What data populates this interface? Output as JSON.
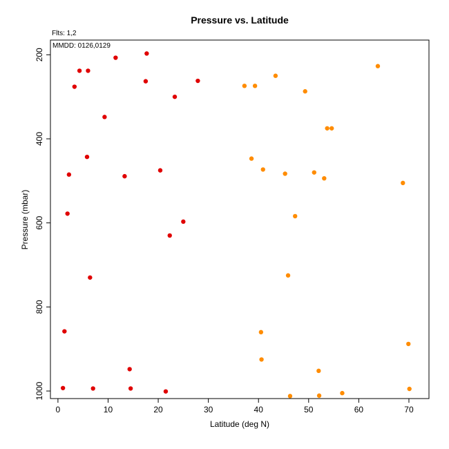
{
  "chart_data": {
    "type": "scatter",
    "title": "Pressure vs. Latitude",
    "xlabel": "Latitude (deg N)",
    "ylabel": "Pressure (mbar)",
    "xlim": [
      -1.5,
      74
    ],
    "ylim": [
      1018,
      165
    ],
    "y_reversed": true,
    "x_ticks": [
      0,
      10,
      20,
      30,
      40,
      50,
      60,
      70
    ],
    "y_ticks": [
      200,
      400,
      600,
      800,
      1000
    ],
    "grid": false,
    "annotations": {
      "fits": "Flts: 1,2",
      "mmdd": "MMDD: 0126,0129"
    },
    "series": [
      {
        "color": "#e00000",
        "points": [
          [
            17.7,
            197
          ],
          [
            11.5,
            207
          ],
          [
            4.3,
            238
          ],
          [
            6.0,
            238
          ],
          [
            17.5,
            263
          ],
          [
            27.9,
            262
          ],
          [
            3.3,
            276
          ],
          [
            23.3,
            300
          ],
          [
            9.3,
            348
          ],
          [
            5.8,
            443
          ],
          [
            20.4,
            475
          ],
          [
            2.2,
            485
          ],
          [
            13.3,
            489
          ],
          [
            25.0,
            597
          ],
          [
            1.9,
            578
          ],
          [
            22.3,
            630
          ],
          [
            6.4,
            730
          ],
          [
            1.3,
            858
          ],
          [
            14.3,
            948
          ],
          [
            1.0,
            993
          ],
          [
            7.0,
            994
          ],
          [
            14.5,
            994
          ],
          [
            21.5,
            1001
          ]
        ]
      },
      {
        "color": "#ff8c00",
        "points": [
          [
            63.8,
            227
          ],
          [
            43.4,
            250
          ],
          [
            37.2,
            274
          ],
          [
            39.3,
            274
          ],
          [
            49.3,
            287
          ],
          [
            53.7,
            375
          ],
          [
            54.6,
            375
          ],
          [
            38.6,
            447
          ],
          [
            40.9,
            473
          ],
          [
            45.3,
            483
          ],
          [
            51.1,
            480
          ],
          [
            53.1,
            494
          ],
          [
            68.8,
            505
          ],
          [
            47.3,
            584
          ],
          [
            45.9,
            725
          ],
          [
            40.5,
            860
          ],
          [
            69.9,
            888
          ],
          [
            40.6,
            925
          ],
          [
            52.0,
            952
          ],
          [
            56.7,
            1005
          ],
          [
            46.3,
            1012
          ],
          [
            52.1,
            1011
          ],
          [
            70.1,
            995
          ]
        ]
      }
    ]
  }
}
